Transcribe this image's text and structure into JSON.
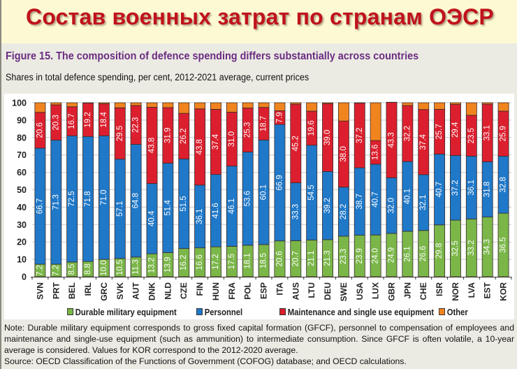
{
  "banner": {
    "title": "Состав военных затрат по странам ОЭСР"
  },
  "figure": {
    "title": "Figure 15. The composition of defence spending differs substantially across countries",
    "subtitle": "Shares in total defence spending, per cent, 2012-2021 average, current prices",
    "note": "Note: Durable military equipment corresponds to gross fixed capital formation (GFCF), personnel to compensation of employees and maintenance and single-use equipment (such as ammunition) to intermediate consumption. Since GFCF is often volatile, a 10-year average is considered. Values for KOR correspond to the 2012-2020 average.",
    "source": "Source: OECD Classification of the Functions of Government (COFOG) database; and OECD calculations."
  },
  "colors": {
    "durable": "#7ab648",
    "personnel": "#1f78c8",
    "maintenance": "#dc1f2e",
    "other": "#f0841f",
    "banner_title": "#c0121c",
    "figure_title": "#6a2c82"
  },
  "chart_data": {
    "type": "bar",
    "stacked": true,
    "title": "Figure 15. The composition of defence spending differs substantially across countries",
    "subtitle": "Shares in total defence spending, per cent, 2012-2021 average, current prices",
    "xlabel": "",
    "ylabel": "",
    "ylim": [
      0,
      100
    ],
    "yticks": [
      0,
      10,
      20,
      30,
      40,
      50,
      60,
      70,
      80,
      90,
      100
    ],
    "grid": true,
    "legend_position": "bottom",
    "categories": [
      "SVN",
      "PRT",
      "BEL",
      "IRL",
      "GRC",
      "SVK",
      "AUT",
      "DNK",
      "NLD",
      "CZE",
      "FIN",
      "HUN",
      "FRA",
      "POL",
      "ESP",
      "ITA",
      "AUS",
      "LTU",
      "DEU",
      "SWE",
      "USA",
      "LUX",
      "GBR",
      "JPN",
      "CHE",
      "ISR",
      "NOR",
      "LVA",
      "EST",
      "KOR"
    ],
    "series": [
      {
        "name": "Durable military equipment",
        "key": "durable",
        "values": [
          7.2,
          7.2,
          8.5,
          8.8,
          10.0,
          10.5,
          11.3,
          13.2,
          13.9,
          16.2,
          16.6,
          17.2,
          17.5,
          18.1,
          18.5,
          20.6,
          20.7,
          21.1,
          21.3,
          23.3,
          23.9,
          24.0,
          24.9,
          26.1,
          26.6,
          29.8,
          32.5,
          33.2,
          34.3,
          36.5
        ]
      },
      {
        "name": "Personnel",
        "key": "personnel",
        "values": [
          66.7,
          71.3,
          72.5,
          71.8,
          71.0,
          57.1,
          64.8,
          40.4,
          51.4,
          51.5,
          36.1,
          41.6,
          46.1,
          53.6,
          60.1,
          66.9,
          33.3,
          54.5,
          39.2,
          28.2,
          38.7,
          40.7,
          32.0,
          40.1,
          32.1,
          40.7,
          37.2,
          36.1,
          31.8,
          32.8
        ]
      },
      {
        "name": "Maintenance and single use equipment",
        "key": "maintenance",
        "values": [
          20.6,
          20.3,
          16.7,
          19.2,
          18.4,
          29.5,
          22.3,
          43.8,
          31.9,
          26.2,
          43.8,
          37.4,
          31.0,
          25.3,
          18.7,
          7.9,
          45.2,
          19.6,
          39.0,
          38.0,
          37.2,
          13.6,
          43.3,
          32.2,
          37.4,
          25.7,
          29.4,
          23.5,
          33.1,
          25.9
        ]
      },
      {
        "name": "Other",
        "key": "other",
        "values": [
          5.5,
          1.2,
          2.3,
          0.2,
          0.6,
          2.9,
          1.6,
          2.6,
          2.8,
          6.1,
          3.5,
          3.8,
          5.4,
          3.0,
          2.7,
          4.6,
          0.8,
          4.8,
          0.5,
          10.5,
          0.2,
          21.7,
          0.1,
          1.6,
          3.9,
          3.8,
          0.9,
          7.2,
          0.8,
          4.8
        ]
      }
    ],
    "data_labels_series": [
      "durable",
      "personnel",
      "maintenance"
    ]
  }
}
